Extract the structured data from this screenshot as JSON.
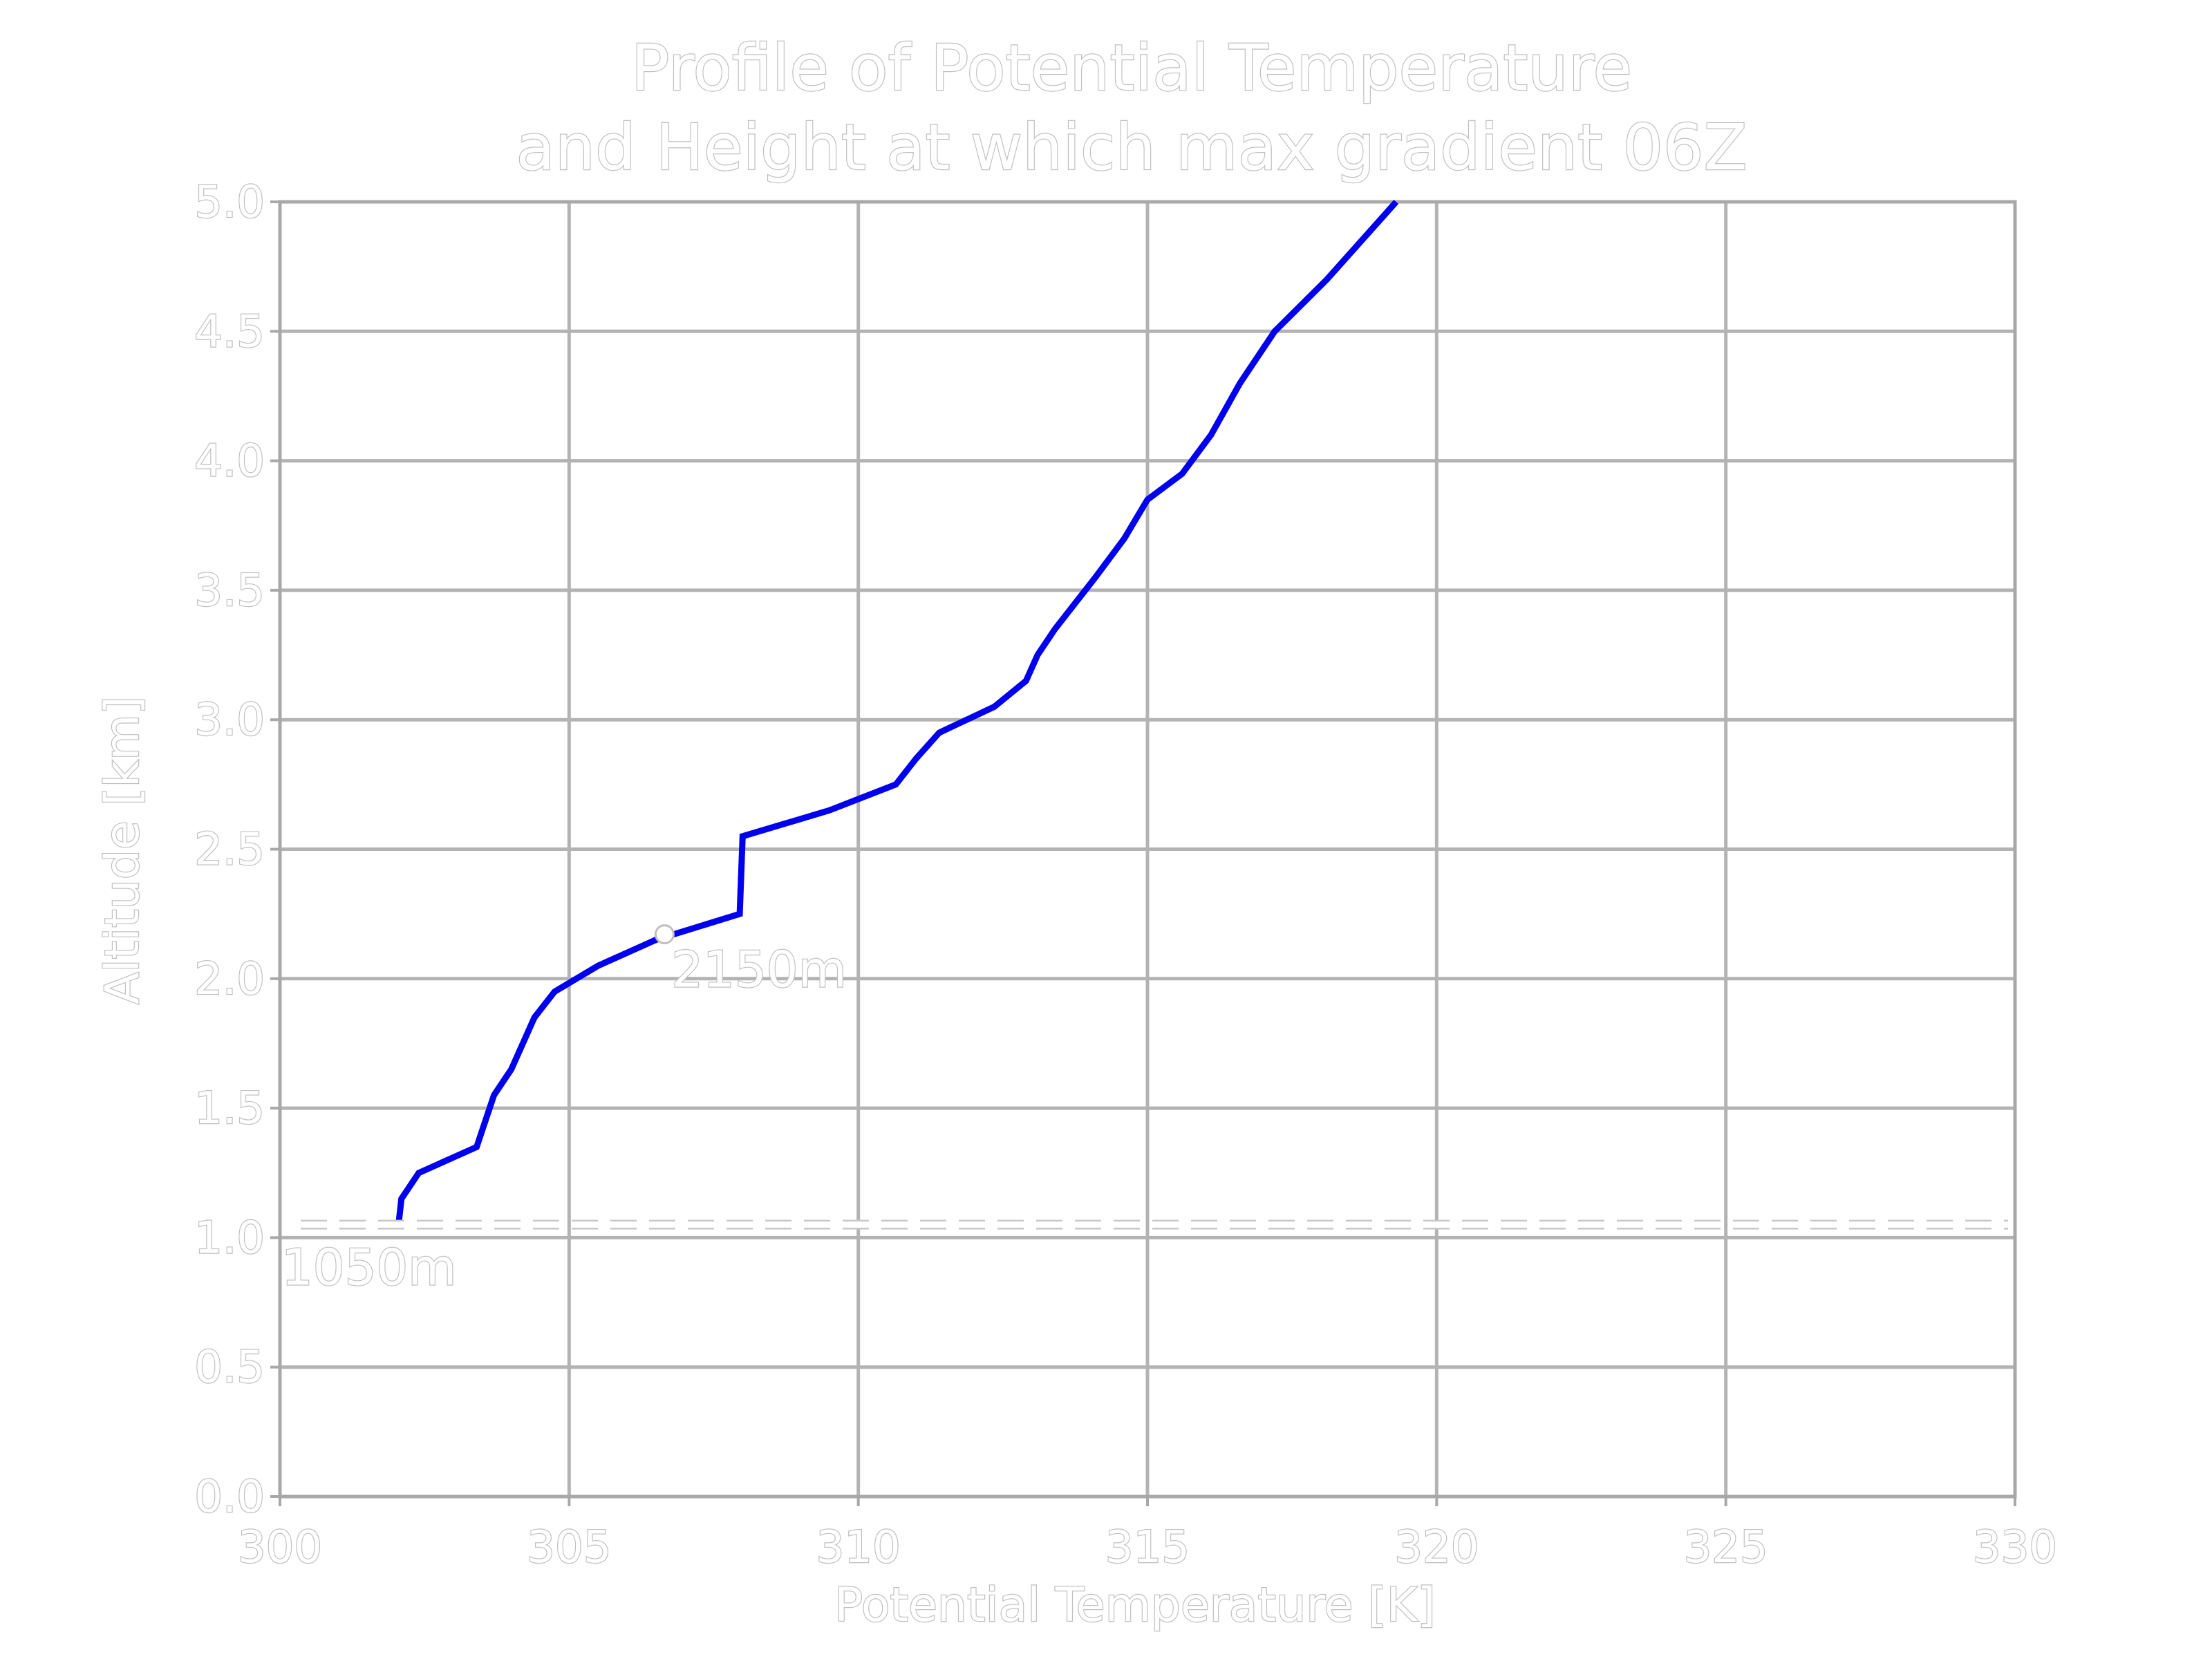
{
  "chart_data": {
    "type": "line",
    "title_lines": [
      "Profile of Potential Temperature",
      "and Height at which max gradient 06Z"
    ],
    "xlabel": "Potential Temperature [K]",
    "ylabel": "Altitude [km]",
    "xlim": [
      300,
      330
    ],
    "ylim": [
      0,
      5
    ],
    "xticks": [
      300,
      305,
      310,
      315,
      320,
      325,
      330
    ],
    "yticks": [
      0.0,
      0.5,
      1.0,
      1.5,
      2.0,
      2.5,
      3.0,
      3.5,
      4.0,
      4.5,
      5.0
    ],
    "xtick_labels": [
      "300",
      "305",
      "310",
      "315",
      "320",
      "325",
      "330"
    ],
    "ytick_labels": [
      "0.0",
      "0.5",
      "1.0",
      "1.5",
      "2.0",
      "2.5",
      "3.0",
      "3.5",
      "4.0",
      "4.5",
      "5.0"
    ],
    "grid": true,
    "series": [
      {
        "color": "#0000ee",
        "x": [
          302.05,
          302.1,
          302.4,
          303.4,
          303.7,
          304.0,
          304.4,
          304.75,
          305.5,
          306.5,
          307.95,
          308.0,
          309.5,
          310.65,
          311.0,
          311.4,
          312.35,
          312.9,
          313.1,
          313.4,
          314.1,
          314.6,
          315.0,
          315.6,
          316.1,
          316.6,
          317.2,
          318.1,
          319.3
        ],
        "y": [
          1.05,
          1.15,
          1.25,
          1.35,
          1.55,
          1.65,
          1.85,
          1.95,
          2.05,
          2.15,
          2.25,
          2.55,
          2.65,
          2.75,
          2.85,
          2.95,
          3.05,
          3.15,
          3.25,
          3.35,
          3.55,
          3.7,
          3.85,
          3.95,
          4.1,
          4.3,
          4.5,
          4.7,
          5.0
        ]
      }
    ],
    "hline": {
      "y": 1.05,
      "color": "#ffffff",
      "style": "dashed",
      "label": "1050m"
    },
    "marker": {
      "x": 306.65,
      "y": 2.15,
      "label": "2150m"
    }
  }
}
